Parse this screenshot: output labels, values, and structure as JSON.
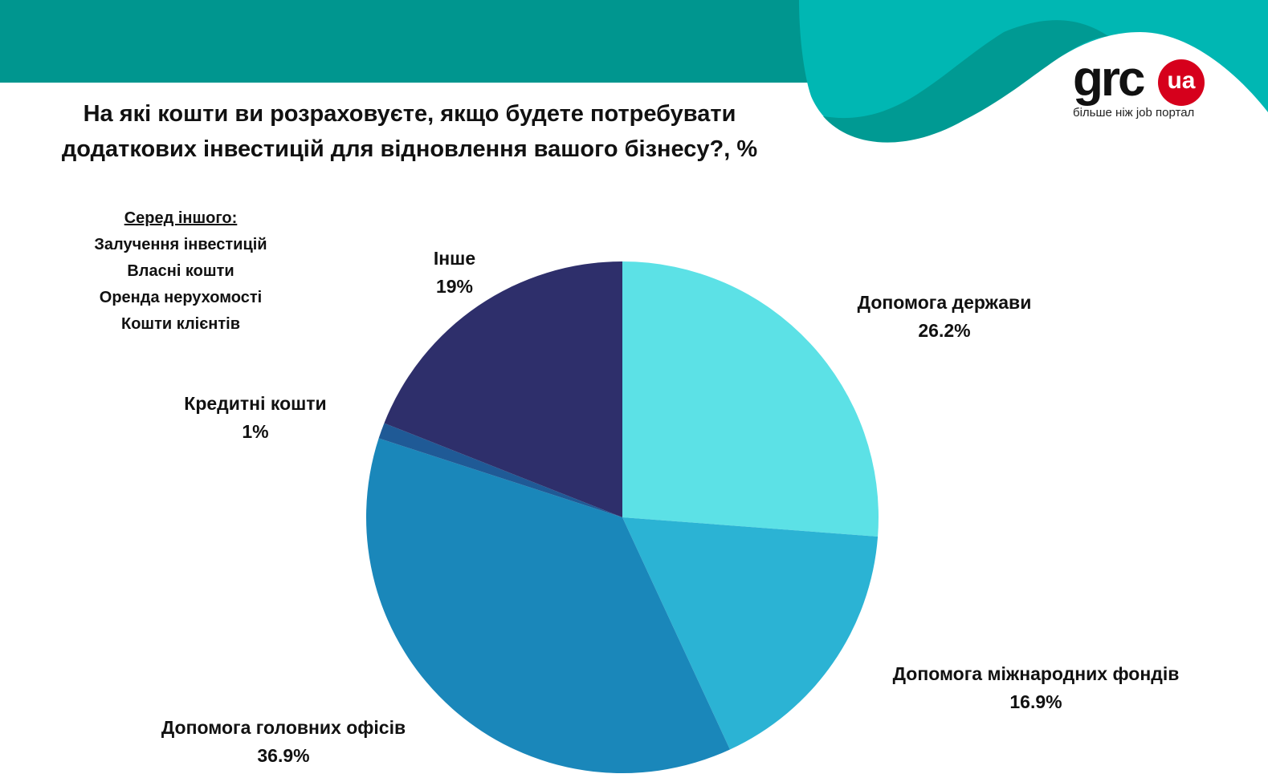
{
  "header": {
    "title_line1": "На які кошти ви розраховуєте, якщо будете потребувати",
    "title_line2": "додаткових інвестицій для відновлення вашого бізнесу?, %"
  },
  "logo": {
    "text": "grc",
    "badge": "ua",
    "tagline": "більше ніж job портал"
  },
  "note": {
    "heading": "Серед іншого:",
    "items": [
      "Залучення інвестицій",
      "Власні кошти",
      "Оренда нерухомості",
      "Кошти клієнтів"
    ]
  },
  "chart_data": {
    "type": "pie",
    "title": "На які кошти ви розраховуєте, якщо будете потребувати додаткових інвестицій для відновлення вашого бізнесу?, %",
    "categories": [
      "Допомога держави",
      "Допомога міжнародних фондів",
      "Допомога головних офісів",
      "Кредитні кошти",
      "Інше"
    ],
    "values": [
      26.2,
      16.9,
      36.9,
      1,
      19
    ],
    "value_labels": [
      "26.2%",
      "16.9%",
      "36.9%",
      "1%",
      "19%"
    ],
    "colors": [
      "#5ce1e6",
      "#2bb3d4",
      "#1a87ba",
      "#1f5a96",
      "#2e2f6b"
    ]
  }
}
